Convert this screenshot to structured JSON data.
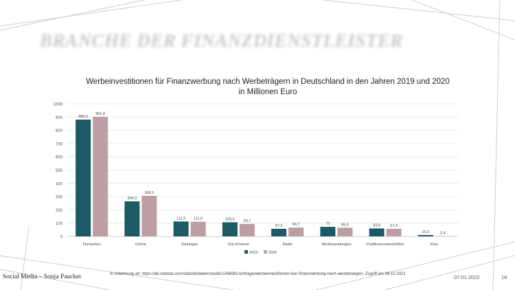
{
  "slide": {
    "heading": "BRANCHE DER FINANZDIENSTLEISTER",
    "footer_author": "Social Media – Sonja Paucker",
    "footer_source": "In Anlehnung an: https://de.statista.com/statistik/daten/studie/1268081/umfrage/werbeinvestitionen-fuer-finanzwerbung-nach-werbetraeger/, Zugriff am 06.12.2021",
    "footer_date": "07.01.2022",
    "footer_page": "18"
  },
  "chart_data": {
    "type": "bar",
    "title_line1": "Werbeinvestitionen für Finanzwerbung nach Werbeträgern in Deutschland in den Jahren 2019 und 2020",
    "title_line2": "in Millionen Euro",
    "categories": [
      "Fernsehen",
      "Online",
      "Zeitungen",
      "Out of Home",
      "Radio",
      "Werbesendungen",
      "Publikumszeitschriften",
      "Kino"
    ],
    "series": [
      {
        "name": "2019",
        "color": "#1c5a66",
        "values": [
          880.5,
          264.3,
          112.5,
          106.6,
          57.2,
          72,
          59.8,
          10.3
        ],
        "labels": [
          "880,5",
          "264,3",
          "112,5",
          "106,6",
          "57,2",
          "72",
          "59,8",
          "10,3"
        ]
      },
      {
        "name": "2020",
        "color": "#bc9ea3",
        "values": [
          901.8,
          306.5,
          111.0,
          93.7,
          66.7,
          65.5,
          57.4,
          2.4
        ],
        "labels": [
          "901,8",
          "306,5",
          "111,0",
          "93,7",
          "66,7",
          "65,5",
          "57,4",
          "2,4"
        ]
      }
    ],
    "yticks": [
      0,
      100,
      200,
      300,
      400,
      500,
      600,
      700,
      800,
      900,
      1000
    ],
    "ylim": [
      0,
      1000
    ],
    "grid": true,
    "legend": "bottom-center"
  }
}
